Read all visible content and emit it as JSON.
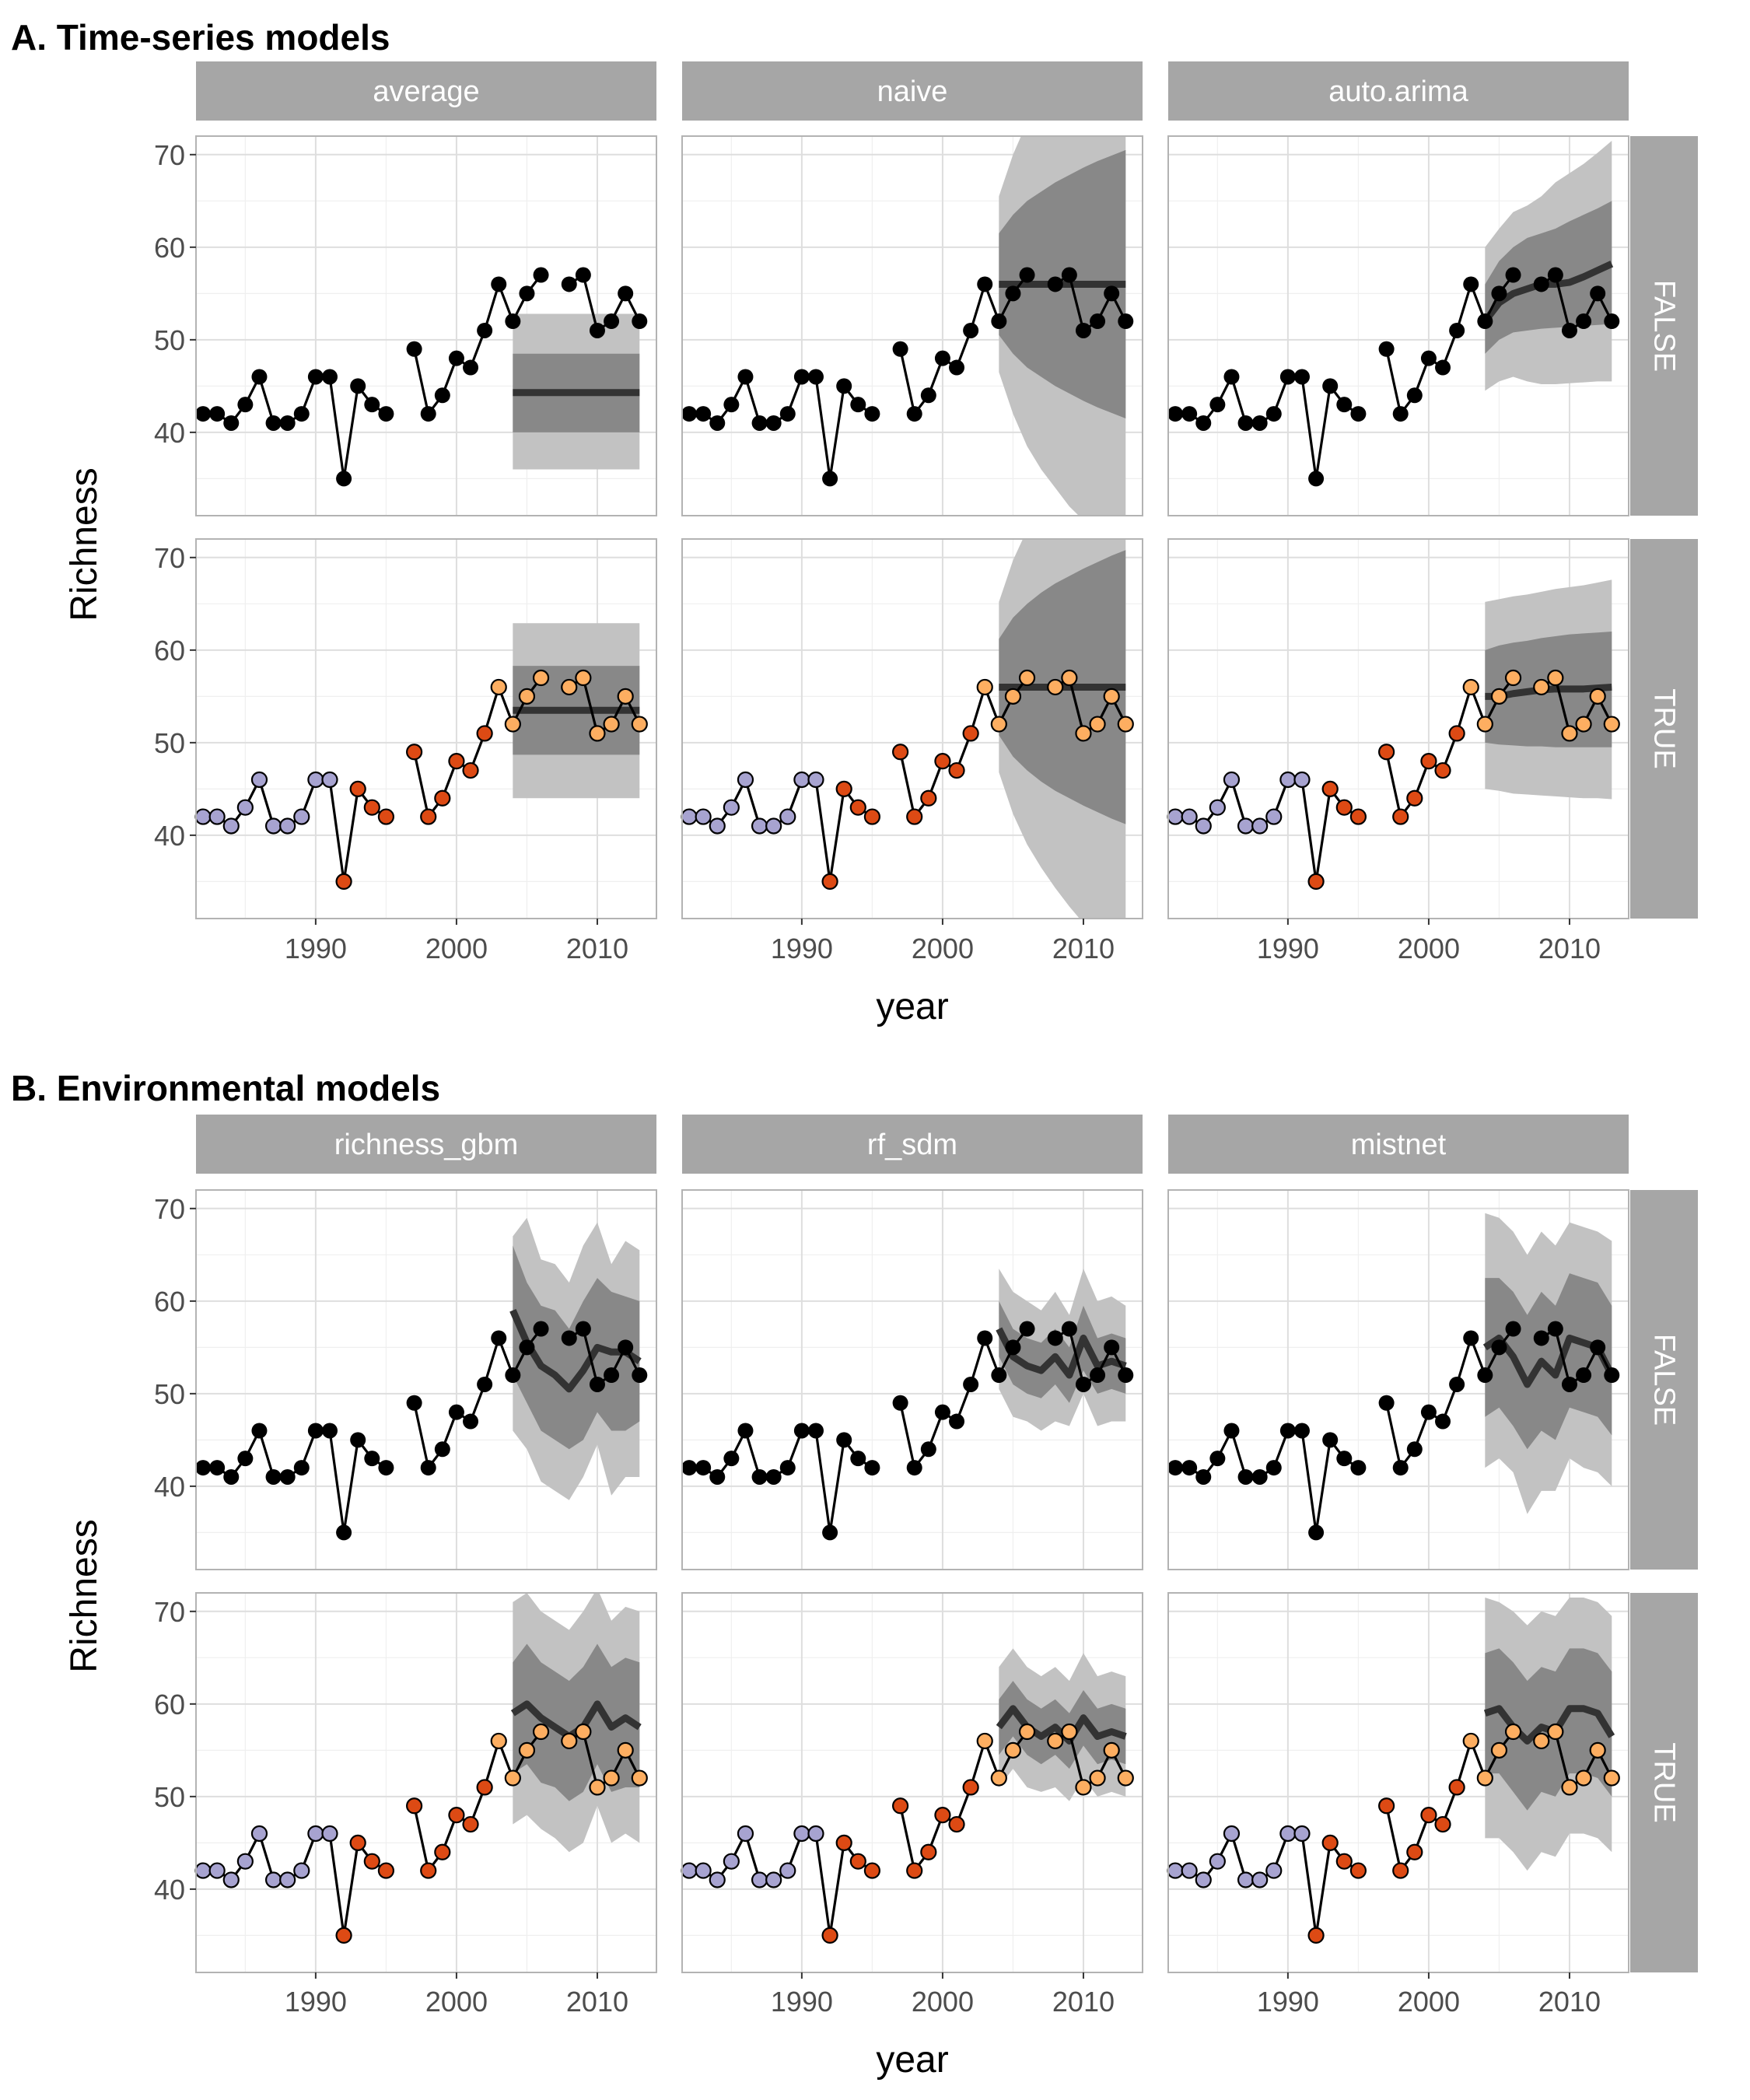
{
  "colors": {
    "background": "#ffffff",
    "strip": "#a6a6a6",
    "grid_major": "#dedede",
    "grid_minor": "#efefef",
    "panel_border": "#b3b3b3",
    "pi95": "#c2c2c2",
    "pi50": "#888888",
    "median_line": "#333333",
    "obs_line": "#000000",
    "point_observed_black": "#000000",
    "point_training_early": "#a7a3d0",
    "point_training_late": "#dd4a14",
    "point_test": "#fdae61"
  },
  "chart_data": [
    {
      "type": "line",
      "section": "A. Time-series models",
      "facets": [
        "average",
        "naive",
        "auto.arima"
      ],
      "rows": [
        "FALSE",
        "TRUE"
      ],
      "xlabel": "year",
      "ylabel": "Richness",
      "xticks": [
        1990,
        2000,
        2010
      ],
      "yticks": [
        40,
        50,
        60,
        70
      ],
      "xlim": [
        1981.5,
        2014.2
      ],
      "ylim": [
        31,
        72
      ],
      "observed": {
        "years": [
          1982,
          1983,
          1984,
          1985,
          1986,
          1987,
          1988,
          1989,
          1990,
          1991,
          1992,
          1993,
          1994,
          1995,
          1996,
          1997,
          1998,
          1999,
          2000,
          2001,
          2002,
          2003,
          2004,
          2005,
          2006,
          2007,
          2008,
          2009,
          2010,
          2011,
          2012,
          2013
        ],
        "richness": [
          42,
          42,
          41,
          43,
          46,
          41,
          41,
          42,
          46,
          46,
          35,
          45,
          43,
          42,
          null,
          49,
          42,
          44,
          48,
          47,
          51,
          56,
          52,
          55,
          57,
          null,
          56,
          57,
          51,
          52,
          55,
          52
        ]
      },
      "point_groups": {
        "early_years": [
          1982,
          1983,
          1984,
          1985,
          1986,
          1987,
          1988,
          1989,
          1990,
          1991
        ],
        "late_years": [
          1992,
          1993,
          1994,
          1995,
          1996,
          1997,
          1998,
          1999,
          2000,
          2001,
          2002
        ],
        "test_years": [
          2003,
          2004,
          2005,
          2006,
          2007,
          2008,
          2009,
          2010,
          2011,
          2012,
          2013
        ]
      },
      "forecast_years": [
        2004,
        2005,
        2006,
        2007,
        2008,
        2009,
        2010,
        2011,
        2012,
        2013
      ],
      "forecasts": {
        "average": {
          "FALSE": {
            "median": [
              44.3,
              44.3,
              44.3,
              44.3,
              44.3,
              44.3,
              44.3,
              44.3,
              44.3,
              44.3
            ],
            "lo50": [
              40,
              40,
              40,
              40,
              40,
              40,
              40,
              40,
              40,
              40
            ],
            "hi50": [
              48.5,
              48.5,
              48.5,
              48.5,
              48.5,
              48.5,
              48.5,
              48.5,
              48.5,
              48.5
            ],
            "lo95": [
              36,
              36,
              36,
              36,
              36,
              36,
              36,
              36,
              36,
              36
            ],
            "hi95": [
              52.8,
              52.8,
              52.8,
              52.8,
              52.8,
              52.8,
              52.8,
              52.8,
              52.8,
              52.8
            ]
          },
          "TRUE": {
            "median": [
              53.5,
              53.5,
              53.5,
              53.5,
              53.5,
              53.5,
              53.5,
              53.5,
              53.5,
              53.5
            ],
            "lo50": [
              48.7,
              48.7,
              48.7,
              48.7,
              48.7,
              48.7,
              48.7,
              48.7,
              48.7,
              48.7
            ],
            "hi50": [
              58.3,
              58.3,
              58.3,
              58.3,
              58.3,
              58.3,
              58.3,
              58.3,
              58.3,
              58.3
            ],
            "lo95": [
              44,
              44,
              44,
              44,
              44,
              44,
              44,
              44,
              44,
              44
            ],
            "hi95": [
              62.9,
              62.9,
              62.9,
              62.9,
              62.9,
              62.9,
              62.9,
              62.9,
              62.9,
              62.9
            ]
          }
        },
        "naive": {
          "FALSE": {
            "median": [
              56,
              56,
              56,
              56,
              56,
              56,
              56,
              56,
              56,
              56
            ],
            "lo50": [
              50.5,
              48.5,
              47,
              46,
              45,
              44.2,
              43.4,
              42.7,
              42.1,
              41.5
            ],
            "hi50": [
              61.5,
              63.5,
              65,
              66,
              67,
              67.8,
              68.6,
              69.3,
              69.9,
              70.5
            ],
            "lo95": [
              46.5,
              42,
              38.5,
              36,
              34,
              32,
              30.5,
              29,
              27.5,
              26.5
            ],
            "hi95": [
              65.5,
              70,
              73.5,
              76,
              78,
              80,
              81.5,
              83,
              84.5,
              85.5
            ]
          },
          "TRUE": {
            "median": [
              56,
              56,
              56,
              56,
              56,
              56,
              56,
              56,
              56,
              56
            ],
            "lo50": [
              50.8,
              48.5,
              47,
              45.8,
              44.8,
              44,
              43.2,
              42.5,
              41.8,
              41.2
            ],
            "hi50": [
              61.2,
              63.5,
              65,
              66.2,
              67.2,
              68,
              68.8,
              69.5,
              70.2,
              70.8
            ],
            "lo95": [
              46.8,
              42.3,
              39,
              36.5,
              34.3,
              32.3,
              30.5,
              29,
              27.5,
              26
            ],
            "hi95": [
              65.2,
              69.7,
              73,
              75.5,
              77.7,
              79.7,
              81.5,
              83,
              84.5,
              86
            ]
          }
        },
        "auto.arima": {
          "FALSE": {
            "median": [
              52,
              54,
              55,
              55.5,
              56,
              56,
              56.2,
              56.8,
              57.5,
              58.2
            ],
            "lo50": [
              48.5,
              50,
              50.8,
              51,
              51.2,
              51.3,
              51.4,
              51.5,
              51.6,
              51.7
            ],
            "hi50": [
              56,
              58.5,
              60,
              61,
              61.5,
              62,
              62.8,
              63.5,
              64.2,
              65
            ],
            "lo95": [
              44.5,
              45.5,
              46,
              45.5,
              45.2,
              45.2,
              45.3,
              45.4,
              45.5,
              45.5
            ],
            "hi95": [
              60,
              62,
              63.8,
              64.5,
              65.5,
              67,
              68,
              69,
              70.2,
              71.5
            ]
          },
          "TRUE": {
            "median": [
              55,
              55,
              55.3,
              55.5,
              55.7,
              55.8,
              55.8,
              55.8,
              55.9,
              56
            ],
            "lo50": [
              50,
              49.8,
              49.7,
              49.6,
              49.6,
              49.5,
              49.5,
              49.5,
              49.5,
              49.5
            ],
            "hi50": [
              60,
              60.5,
              60.8,
              61,
              61.3,
              61.5,
              61.7,
              61.8,
              61.9,
              62
            ],
            "lo95": [
              45,
              44.8,
              44.5,
              44.4,
              44.3,
              44.2,
              44.1,
              44,
              44,
              43.9
            ],
            "hi95": [
              65.2,
              65.5,
              65.8,
              66,
              66.3,
              66.6,
              66.8,
              67,
              67.3,
              67.6
            ]
          }
        }
      }
    },
    {
      "type": "line",
      "section": "B. Environmental models",
      "facets": [
        "richness_gbm",
        "rf_sdm",
        "mistnet"
      ],
      "rows": [
        "FALSE",
        "TRUE"
      ],
      "xlabel": "year",
      "ylabel": "Richness",
      "xticks": [
        1990,
        2000,
        2010
      ],
      "yticks": [
        40,
        50,
        60,
        70
      ],
      "xlim": [
        1981.5,
        2014.2
      ],
      "ylim": [
        31,
        72
      ],
      "forecast_years": [
        2004,
        2005,
        2006,
        2007,
        2008,
        2009,
        2010,
        2011,
        2012,
        2013
      ],
      "forecasts": {
        "richness_gbm": {
          "FALSE": {
            "median": [
              59,
              55.5,
              53,
              52,
              50.5,
              52.5,
              55,
              54.5,
              54.5,
              53.5
            ],
            "lo50": [
              52,
              49,
              46,
              45,
              44,
              45,
              48,
              46,
              46,
              47
            ],
            "hi50": [
              66,
              62,
              59.5,
              59,
              57,
              60,
              62.5,
              61,
              60.5,
              60
            ],
            "lo95": [
              46,
              44,
              40.5,
              39.5,
              38.5,
              41,
              44.5,
              39,
              41,
              41
            ],
            "hi95": [
              67,
              69,
              64.5,
              64,
              62,
              66,
              68.5,
              64,
              66.5,
              65.5
            ]
          },
          "TRUE": {
            "median": [
              59,
              60,
              58.5,
              57.5,
              56.5,
              57.5,
              60,
              57.5,
              58.5,
              57.5
            ],
            "lo50": [
              52.5,
              53.5,
              51.5,
              51,
              49.5,
              50.5,
              53.5,
              50.5,
              51,
              51
            ],
            "hi50": [
              64.5,
              66.5,
              64.5,
              63.5,
              62.5,
              64,
              66.5,
              64,
              65,
              64.5
            ],
            "lo95": [
              47,
              48,
              46.5,
              45.5,
              44,
              45,
              49,
              45,
              46,
              45
            ],
            "hi95": [
              71,
              72,
              70,
              69,
              68,
              70,
              72.5,
              69,
              70.5,
              70
            ]
          }
        },
        "rf_sdm": {
          "FALSE": {
            "median": [
              57,
              54,
              53,
              52.5,
              54,
              52,
              56,
              53,
              53.5,
              53
            ],
            "lo50": [
              54,
              51,
              50,
              49.5,
              51,
              49,
              52.5,
              50,
              50.5,
              50
            ],
            "hi50": [
              60,
              57,
              56,
              55.5,
              57,
              55,
              59.5,
              56,
              56.5,
              56
            ],
            "lo95": [
              50.5,
              47.5,
              47,
              46,
              47,
              46.5,
              50,
              46.5,
              47,
              47
            ],
            "hi95": [
              63.5,
              61,
              60,
              59,
              61,
              58.5,
              63.5,
              60,
              60.5,
              59.5
            ]
          },
          "TRUE": {
            "median": [
              57.5,
              59.5,
              57.5,
              56.5,
              57.5,
              56,
              58.5,
              56.5,
              57,
              56.5
            ],
            "lo50": [
              54.5,
              56.5,
              54.5,
              53.5,
              54.5,
              53,
              55.5,
              53.5,
              54,
              53.5
            ],
            "hi50": [
              60.5,
              62.5,
              60.5,
              59.5,
              60.5,
              59,
              61.5,
              59.5,
              60,
              59.5
            ],
            "lo95": [
              51,
              53,
              51,
              50.5,
              51,
              49.5,
              52,
              50,
              50.5,
              50
            ],
            "hi95": [
              64,
              66,
              64,
              63,
              64,
              62.5,
              65.5,
              63,
              63.5,
              63
            ]
          }
        },
        "mistnet": {
          "FALSE": {
            "median": [
              55,
              56,
              54,
              51,
              53.5,
              52,
              56,
              55.5,
              55,
              52
            ],
            "lo50": [
              47.5,
              48.5,
              46.5,
              44,
              46,
              45,
              48.5,
              48,
              47.5,
              45.5
            ],
            "hi50": [
              62.5,
              62.5,
              61,
              58.5,
              61,
              59.5,
              63,
              62.5,
              62,
              59.5
            ],
            "lo95": [
              42,
              43,
              41.5,
              37,
              39.5,
              39.5,
              43,
              42,
              41.5,
              40
            ],
            "hi95": [
              69.5,
              69,
              67.5,
              65,
              67.5,
              66,
              68.5,
              68,
              67.5,
              66.5
            ]
          },
          "TRUE": {
            "median": [
              59,
              59.5,
              57.5,
              56,
              57.5,
              57,
              59.5,
              59.5,
              59,
              56.5
            ],
            "lo50": [
              52.5,
              52.5,
              50.5,
              48.5,
              50.5,
              50,
              52.5,
              52.5,
              52,
              50
            ],
            "hi50": [
              65.5,
              66,
              64.5,
              62.5,
              64,
              63.5,
              66,
              66,
              65.5,
              63.5
            ],
            "lo95": [
              45.5,
              45.5,
              44,
              42,
              44,
              43.5,
              46,
              46,
              45.5,
              44
            ],
            "hi95": [
              71.5,
              71,
              70,
              68.5,
              70,
              69.5,
              71.5,
              71.5,
              71,
              69.5
            ]
          }
        }
      }
    }
  ]
}
